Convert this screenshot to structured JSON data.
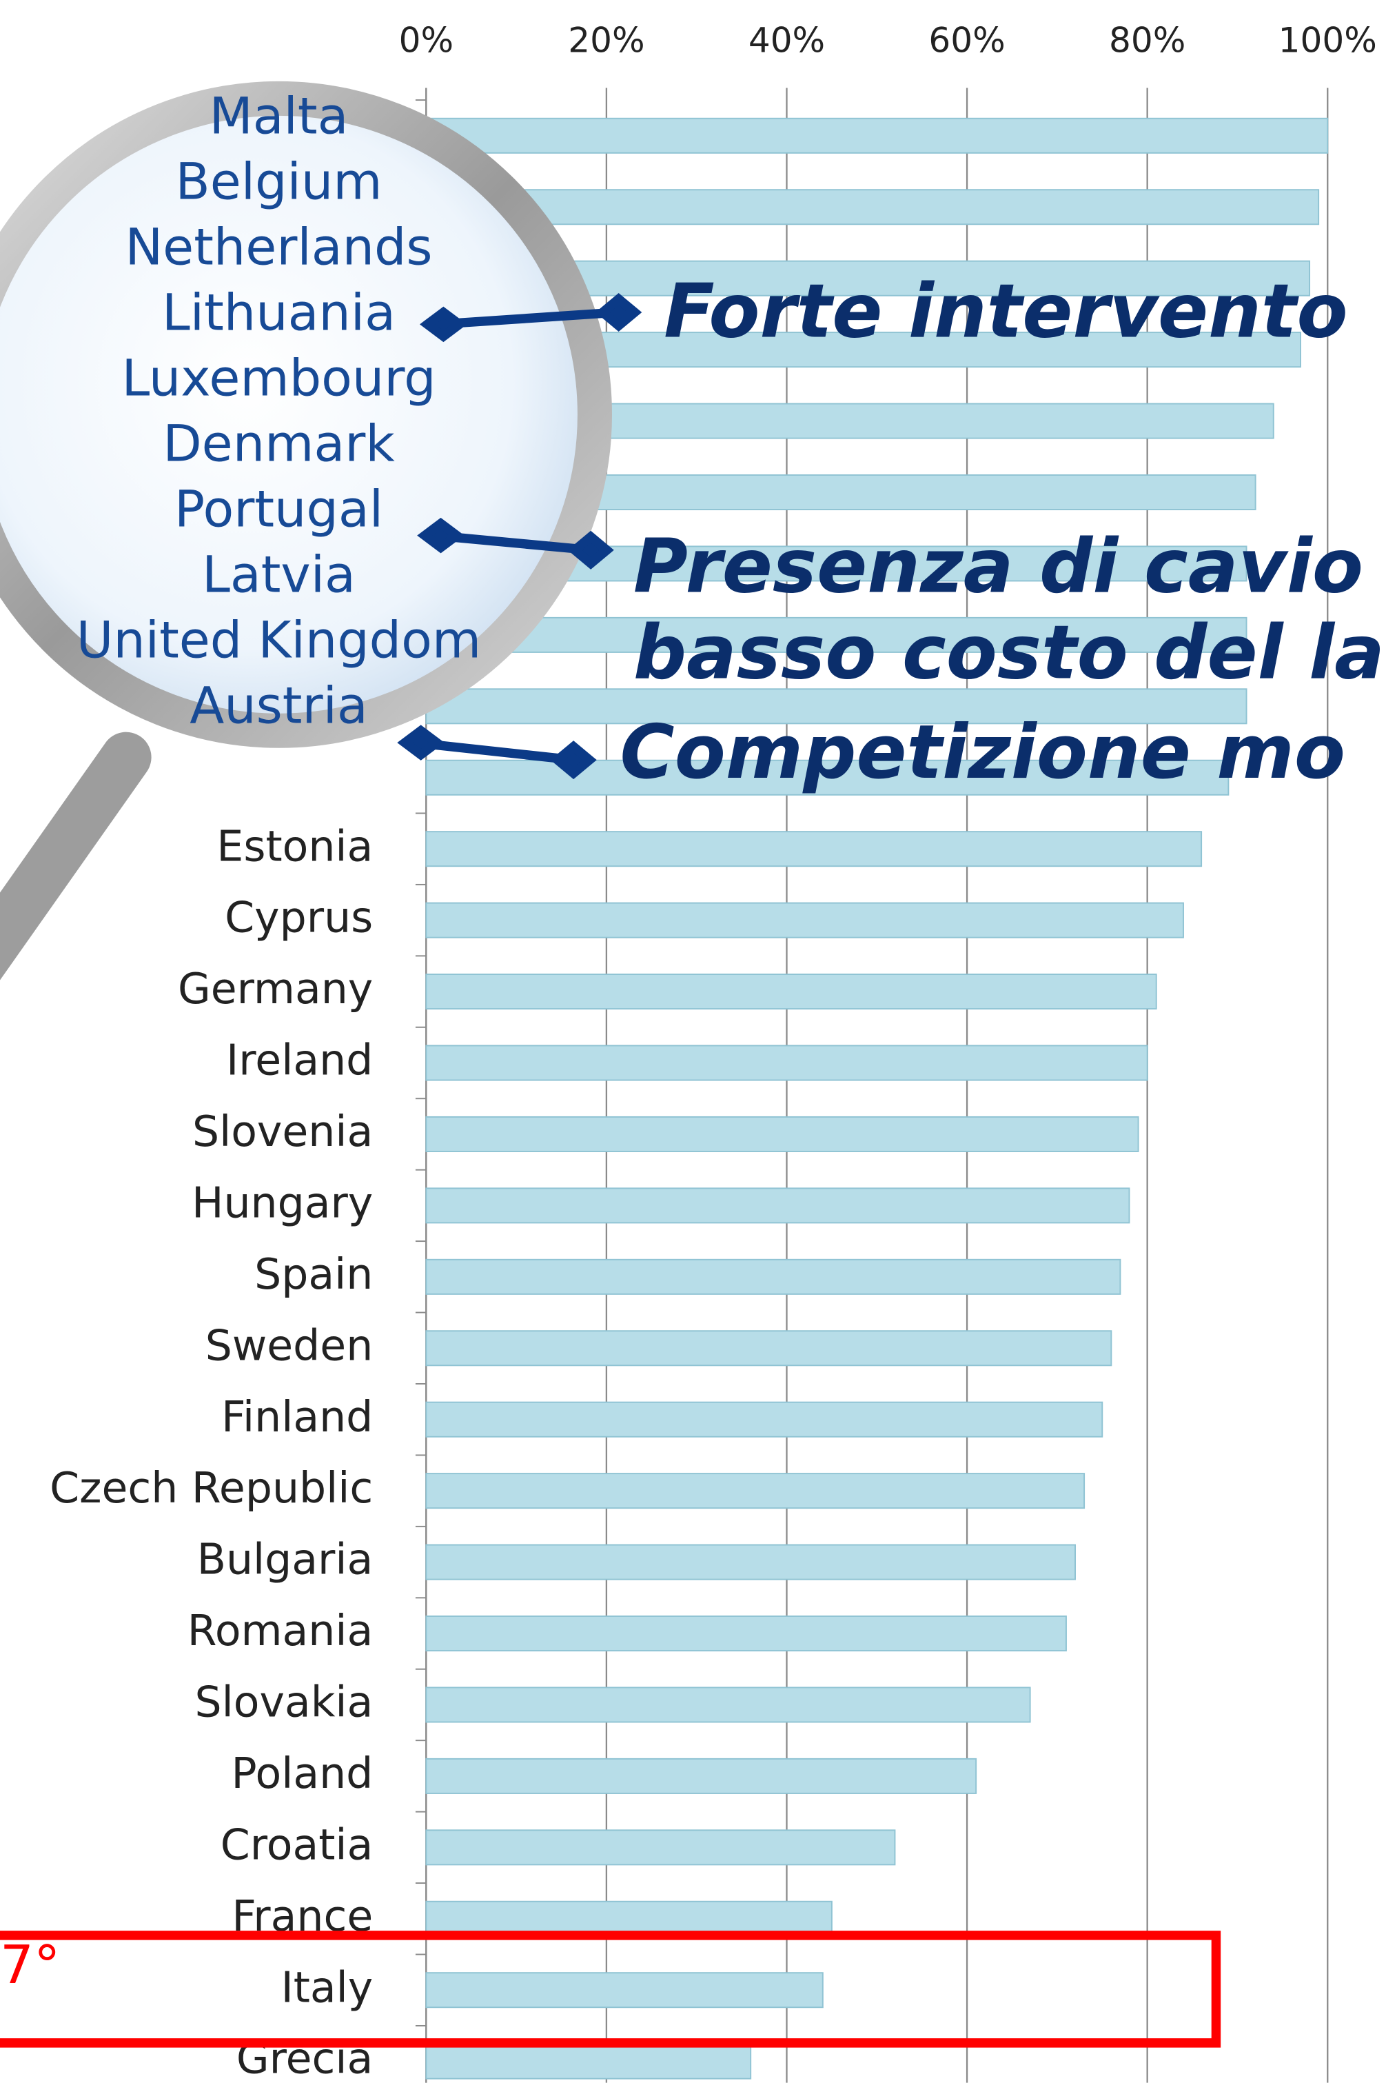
{
  "chart_data": {
    "type": "bar",
    "orientation": "horizontal",
    "categories": [
      "Malta",
      "Belgium",
      "Netherlands",
      "Lithuania",
      "Luxembourg",
      "Denmark",
      "Portugal",
      "Latvia",
      "United Kingdom",
      "Austria",
      "Estonia",
      "Cyprus",
      "Germany",
      "Ireland",
      "Slovenia",
      "Hungary",
      "Spain",
      "Sweden",
      "Finland",
      "Czech Republic",
      "Bulgaria",
      "Romania",
      "Slovakia",
      "Poland",
      "Croatia",
      "France",
      "Italy",
      "Grecia"
    ],
    "values": [
      100,
      99,
      98,
      97,
      94,
      92,
      91,
      91,
      91,
      89,
      86,
      84,
      81,
      80,
      79,
      78,
      77,
      76,
      75,
      73,
      72,
      71,
      67,
      61,
      52,
      45,
      44,
      36
    ],
    "color": "#b7dde8",
    "xlim": [
      0,
      100
    ],
    "xticks": [
      {
        "value": 0,
        "label": "0%"
      },
      {
        "value": 20,
        "label": "20%"
      },
      {
        "value": 40,
        "label": "40%"
      },
      {
        "value": 60,
        "label": "60%"
      },
      {
        "value": 80,
        "label": "80%"
      },
      {
        "value": 100,
        "label": "100%"
      }
    ],
    "grid": true,
    "annotations": [
      "Forte intervento",
      "Presenza di cavio",
      "basso costo del la",
      "Competizione mo",
      "7°"
    ]
  }
}
